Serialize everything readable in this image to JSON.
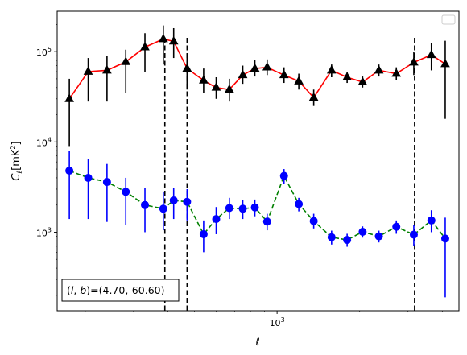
{
  "chart_data": {
    "type": "line",
    "xscale": "log",
    "yscale": "log",
    "xlim": [
      158,
      4600
    ],
    "ylim": [
      135,
      280000
    ],
    "xlabel": "ℓ",
    "ylabel": "C",
    "ylabel_sub": "ℓ",
    "ylabel_unit": "[mK",
    "ylabel_unit_sup": "2",
    "ylabel_unit_close": "]",
    "x_tick_labels": [
      {
        "value": 1000,
        "base": "10",
        "exp": "3"
      }
    ],
    "y_tick_labels": [
      {
        "value": 1000,
        "base": "10",
        "exp": "3"
      },
      {
        "value": 10000,
        "base": "10",
        "exp": "4"
      },
      {
        "value": 100000,
        "base": "10",
        "exp": "5"
      }
    ],
    "vlines": [
      390,
      470,
      3170
    ],
    "annotation": {
      "prefix": "(",
      "l": "l",
      "comma": ", ",
      "b": "b",
      "suffix": ")=(4.70,-60.60)"
    },
    "legend": {
      "placement": "top-right",
      "entries": []
    },
    "series": [
      {
        "color": "#ff0000",
        "marker_color": "#000000",
        "marker": "triangle",
        "linestyle": "solid",
        "error_color": "#000000",
        "points": [
          {
            "x": 175,
            "y": 30000,
            "lo": 9000,
            "hi": 50000
          },
          {
            "x": 205,
            "y": 60000,
            "lo": 28000,
            "hi": 85000
          },
          {
            "x": 240,
            "y": 62000,
            "lo": 28000,
            "hi": 90000
          },
          {
            "x": 281,
            "y": 77000,
            "lo": 35000,
            "hi": 105000
          },
          {
            "x": 330,
            "y": 112000,
            "lo": 60000,
            "hi": 160000
          },
          {
            "x": 385,
            "y": 138000,
            "lo": 72000,
            "hi": 195000
          },
          {
            "x": 420,
            "y": 130000,
            "lo": 85000,
            "hi": 182000
          },
          {
            "x": 470,
            "y": 65000,
            "lo": 38000,
            "hi": 95000
          },
          {
            "x": 540,
            "y": 48000,
            "lo": 35000,
            "hi": 65000
          },
          {
            "x": 600,
            "y": 40000,
            "lo": 30000,
            "hi": 52000
          },
          {
            "x": 670,
            "y": 38000,
            "lo": 28000,
            "hi": 50000
          },
          {
            "x": 750,
            "y": 55000,
            "lo": 44000,
            "hi": 70000
          },
          {
            "x": 830,
            "y": 65000,
            "lo": 53000,
            "hi": 80000
          },
          {
            "x": 920,
            "y": 67000,
            "lo": 55000,
            "hi": 82000
          },
          {
            "x": 1060,
            "y": 55000,
            "lo": 45000,
            "hi": 67000
          },
          {
            "x": 1200,
            "y": 47000,
            "lo": 38000,
            "hi": 57000
          },
          {
            "x": 1360,
            "y": 31000,
            "lo": 25000,
            "hi": 38000
          },
          {
            "x": 1580,
            "y": 62000,
            "lo": 52000,
            "hi": 72000
          },
          {
            "x": 1800,
            "y": 52000,
            "lo": 45000,
            "hi": 60000
          },
          {
            "x": 2050,
            "y": 46000,
            "lo": 40000,
            "hi": 53000
          },
          {
            "x": 2350,
            "y": 62000,
            "lo": 53000,
            "hi": 72000
          },
          {
            "x": 2720,
            "y": 57000,
            "lo": 48000,
            "hi": 67000
          },
          {
            "x": 3150,
            "y": 76000,
            "lo": 55000,
            "hi": 100000
          },
          {
            "x": 3650,
            "y": 92000,
            "lo": 62000,
            "hi": 125000
          },
          {
            "x": 4100,
            "y": 73000,
            "lo": 18000,
            "hi": 132000
          }
        ]
      },
      {
        "color": "#008000",
        "marker_color": "#0000ff",
        "marker": "circle",
        "linestyle": "dashed",
        "error_color": "#0000ff",
        "points": [
          {
            "x": 175,
            "y": 4800,
            "lo": 1400,
            "hi": 8000
          },
          {
            "x": 205,
            "y": 4000,
            "lo": 1400,
            "hi": 6500
          },
          {
            "x": 240,
            "y": 3600,
            "lo": 1300,
            "hi": 5700
          },
          {
            "x": 281,
            "y": 2800,
            "lo": 1200,
            "hi": 4000
          },
          {
            "x": 330,
            "y": 2000,
            "lo": 1000,
            "hi": 3100
          },
          {
            "x": 385,
            "y": 1820,
            "lo": 1050,
            "hi": 2800
          },
          {
            "x": 420,
            "y": 2250,
            "lo": 1400,
            "hi": 3100
          },
          {
            "x": 470,
            "y": 2170,
            "lo": 1350,
            "hi": 3000
          },
          {
            "x": 540,
            "y": 950,
            "lo": 600,
            "hi": 1350
          },
          {
            "x": 600,
            "y": 1400,
            "lo": 950,
            "hi": 1900
          },
          {
            "x": 670,
            "y": 1850,
            "lo": 1400,
            "hi": 2400
          },
          {
            "x": 750,
            "y": 1820,
            "lo": 1400,
            "hi": 2250
          },
          {
            "x": 830,
            "y": 1880,
            "lo": 1500,
            "hi": 2300
          },
          {
            "x": 920,
            "y": 1310,
            "lo": 1050,
            "hi": 1600
          },
          {
            "x": 1060,
            "y": 4200,
            "lo": 3400,
            "hi": 5000
          },
          {
            "x": 1200,
            "y": 2050,
            "lo": 1700,
            "hi": 2400
          },
          {
            "x": 1360,
            "y": 1330,
            "lo": 1100,
            "hi": 1600
          },
          {
            "x": 1580,
            "y": 880,
            "lo": 730,
            "hi": 1040
          },
          {
            "x": 1800,
            "y": 820,
            "lo": 690,
            "hi": 960
          },
          {
            "x": 2050,
            "y": 1010,
            "lo": 870,
            "hi": 1160
          },
          {
            "x": 2350,
            "y": 900,
            "lo": 770,
            "hi": 1040
          },
          {
            "x": 2720,
            "y": 1150,
            "lo": 960,
            "hi": 1350
          },
          {
            "x": 3150,
            "y": 940,
            "lo": 700,
            "hi": 1200
          },
          {
            "x": 3650,
            "y": 1350,
            "lo": 1000,
            "hi": 1750
          },
          {
            "x": 4100,
            "y": 850,
            "lo": 190,
            "hi": 1450
          }
        ]
      }
    ]
  }
}
